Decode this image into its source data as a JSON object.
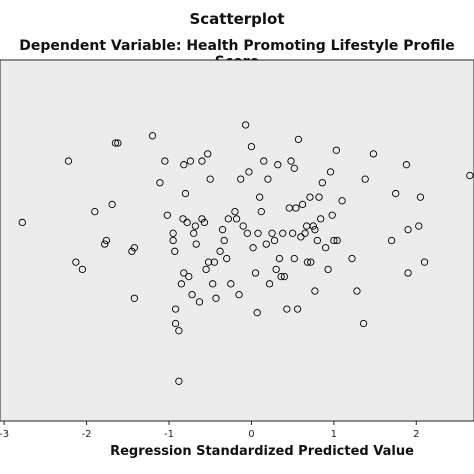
{
  "chart_data": {
    "type": "scatter",
    "title": "Scatterplot",
    "subtitle": "Dependent Variable: Health Promoting Lifestyle Profile Score",
    "xlabel": "Regression Standardized Predicted Value",
    "ylabel": "",
    "xlim": [
      -3.05,
      2.7
    ],
    "ylim": [
      0,
      1
    ],
    "xticks": [
      "-3",
      "-2",
      "-1",
      "0",
      "1",
      "2"
    ],
    "grid": false,
    "plot_background": "#ececec",
    "marker_color": "#000000",
    "points": [
      [
        -2.78,
        0.55
      ],
      [
        -2.22,
        0.72
      ],
      [
        -2.13,
        0.44
      ],
      [
        -2.05,
        0.42
      ],
      [
        -1.9,
        0.58
      ],
      [
        -1.78,
        0.49
      ],
      [
        -1.76,
        0.5
      ],
      [
        -1.69,
        0.6
      ],
      [
        -1.65,
        0.77
      ],
      [
        -1.62,
        0.77
      ],
      [
        -1.45,
        0.47
      ],
      [
        -1.42,
        0.48
      ],
      [
        -1.42,
        0.34
      ],
      [
        -1.2,
        0.79
      ],
      [
        -1.11,
        0.66
      ],
      [
        -1.05,
        0.72
      ],
      [
        -1.02,
        0.57
      ],
      [
        -0.95,
        0.52
      ],
      [
        -0.95,
        0.5
      ],
      [
        -0.93,
        0.47
      ],
      [
        -0.92,
        0.31
      ],
      [
        -0.92,
        0.27
      ],
      [
        -0.88,
        0.25
      ],
      [
        -0.85,
        0.38
      ],
      [
        -0.83,
        0.56
      ],
      [
        -0.82,
        0.71
      ],
      [
        -0.82,
        0.41
      ],
      [
        -0.8,
        0.63
      ],
      [
        -0.78,
        0.55
      ],
      [
        -0.76,
        0.4
      ],
      [
        -0.74,
        0.72
      ],
      [
        -0.72,
        0.35
      ],
      [
        -0.7,
        0.52
      ],
      [
        -0.68,
        0.54
      ],
      [
        -0.67,
        0.49
      ],
      [
        -0.63,
        0.33
      ],
      [
        -0.6,
        0.56
      ],
      [
        -0.6,
        0.72
      ],
      [
        -0.57,
        0.55
      ],
      [
        -0.55,
        0.42
      ],
      [
        -0.53,
        0.74
      ],
      [
        -0.52,
        0.44
      ],
      [
        -0.5,
        0.67
      ],
      [
        -0.47,
        0.38
      ],
      [
        -0.45,
        0.44
      ],
      [
        -0.43,
        0.34
      ],
      [
        -0.38,
        0.47
      ],
      [
        -0.35,
        0.53
      ],
      [
        -0.33,
        0.5
      ],
      [
        -0.3,
        0.45
      ],
      [
        -0.28,
        0.56
      ],
      [
        -0.25,
        0.38
      ],
      [
        -0.2,
        0.58
      ],
      [
        -0.18,
        0.56
      ],
      [
        -0.15,
        0.35
      ],
      [
        -0.13,
        0.67
      ],
      [
        -0.1,
        0.54
      ],
      [
        -0.07,
        0.82
      ],
      [
        -0.05,
        0.52
      ],
      [
        -0.03,
        0.69
      ],
      [
        0.0,
        0.76
      ],
      [
        0.02,
        0.48
      ],
      [
        0.05,
        0.41
      ],
      [
        0.07,
        0.3
      ],
      [
        0.08,
        0.52
      ],
      [
        0.1,
        0.62
      ],
      [
        0.12,
        0.58
      ],
      [
        0.15,
        0.72
      ],
      [
        0.18,
        0.49
      ],
      [
        0.2,
        0.67
      ],
      [
        0.22,
        0.38
      ],
      [
        0.25,
        0.52
      ],
      [
        0.28,
        0.5
      ],
      [
        0.3,
        0.42
      ],
      [
        0.32,
        0.71
      ],
      [
        0.34,
        0.45
      ],
      [
        0.36,
        0.4
      ],
      [
        0.38,
        0.52
      ],
      [
        0.4,
        0.4
      ],
      [
        0.43,
        0.31
      ],
      [
        0.46,
        0.59
      ],
      [
        0.48,
        0.72
      ],
      [
        0.5,
        0.52
      ],
      [
        0.52,
        0.7
      ],
      [
        0.52,
        0.45
      ],
      [
        0.54,
        0.59
      ],
      [
        0.56,
        0.31
      ],
      [
        0.57,
        0.78
      ],
      [
        0.6,
        0.51
      ],
      [
        0.62,
        0.6
      ],
      [
        0.65,
        0.52
      ],
      [
        0.67,
        0.54
      ],
      [
        0.68,
        0.44
      ],
      [
        0.71,
        0.62
      ],
      [
        0.72,
        0.44
      ],
      [
        0.75,
        0.54
      ],
      [
        0.77,
        0.36
      ],
      [
        0.77,
        0.53
      ],
      [
        0.8,
        0.5
      ],
      [
        0.82,
        0.62
      ],
      [
        0.84,
        0.56
      ],
      [
        0.86,
        0.66
      ],
      [
        0.9,
        0.48
      ],
      [
        0.93,
        0.42
      ],
      [
        0.96,
        0.69
      ],
      [
        0.98,
        0.57
      ],
      [
        1.0,
        0.5
      ],
      [
        1.03,
        0.75
      ],
      [
        1.04,
        0.5
      ],
      [
        1.1,
        0.61
      ],
      [
        1.22,
        0.45
      ],
      [
        1.28,
        0.36
      ],
      [
        1.36,
        0.27
      ],
      [
        1.38,
        0.67
      ],
      [
        1.48,
        0.74
      ],
      [
        1.7,
        0.5
      ],
      [
        1.75,
        0.63
      ],
      [
        1.88,
        0.71
      ],
      [
        1.9,
        0.53
      ],
      [
        1.9,
        0.41
      ],
      [
        2.03,
        0.54
      ],
      [
        2.05,
        0.62
      ],
      [
        2.1,
        0.44
      ],
      [
        2.65,
        0.68
      ],
      [
        -0.88,
        0.11
      ]
    ]
  }
}
